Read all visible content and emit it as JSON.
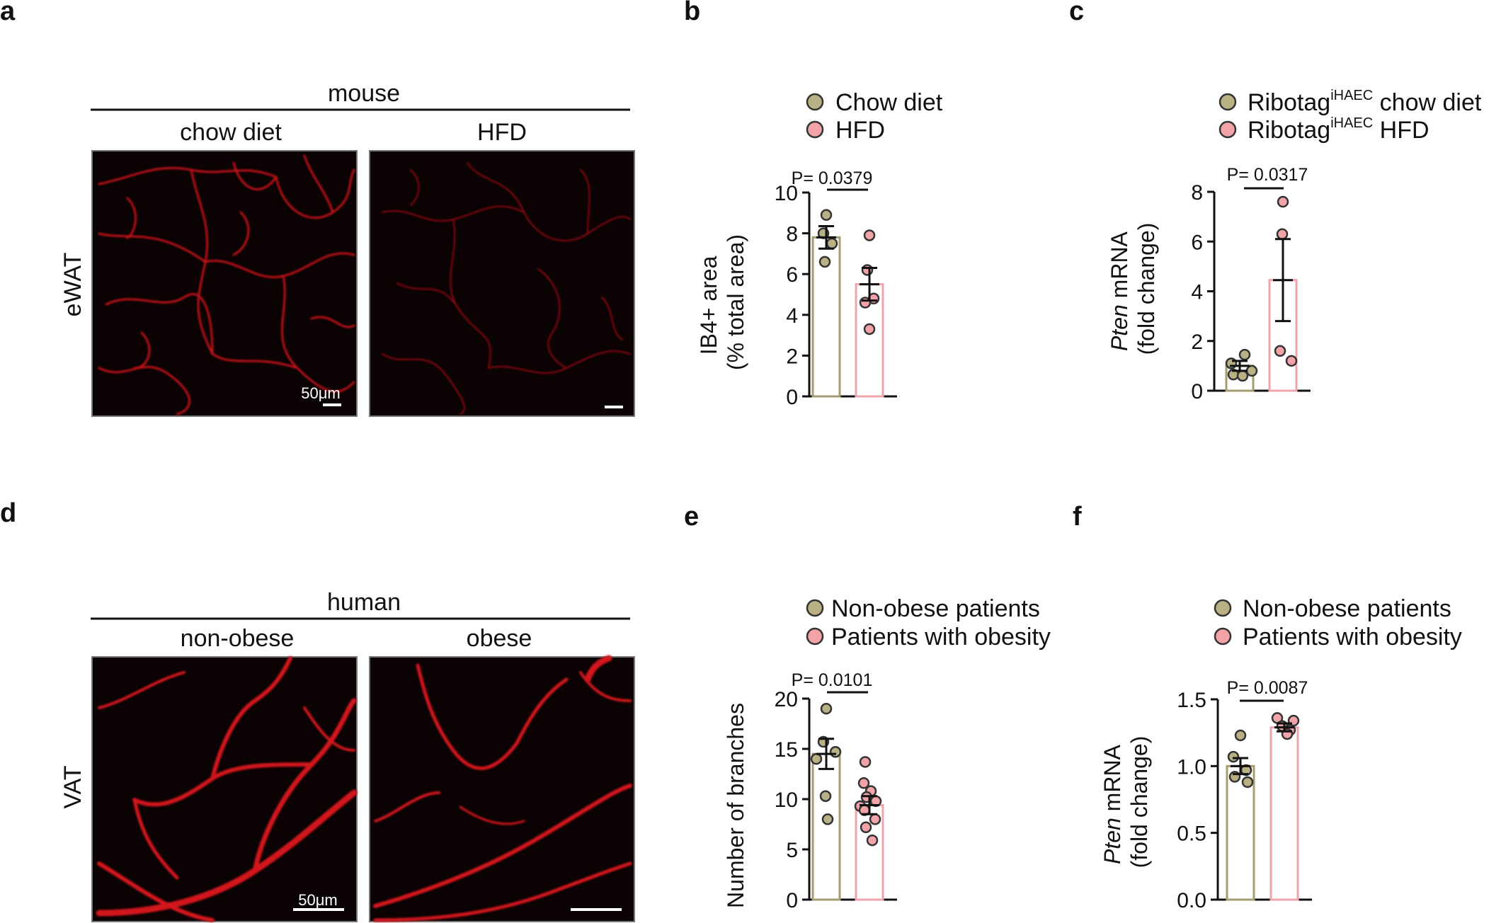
{
  "colors": {
    "chow_fill": "#b9b183",
    "chow_bar": "#a59d70",
    "hfd_fill": "#f2a3a8",
    "hfd_bar": "#f1a3ab",
    "vessel": "#d1121a",
    "image_bg": "#0b0203"
  },
  "panel_a": {
    "letter": "a",
    "species": "mouse",
    "col1": "chow diet",
    "col2": "HFD",
    "row": "eWAT",
    "scale_bar": "50μm"
  },
  "panel_d": {
    "letter": "d",
    "species": "human",
    "col1": "non-obese",
    "col2": "obese",
    "row": "VAT",
    "scale_bar": "50μm"
  },
  "charts": {
    "b": {
      "letter": "b",
      "legend": [
        "Chow diet",
        "HFD"
      ],
      "ylabel_line1": "IB4+ area",
      "ylabel_line2": "(% total area)",
      "pvalue": "P= 0.0379"
    },
    "c": {
      "letter": "c",
      "legend1": {
        "base": "Ribotag",
        "sup": "iHAEC",
        "rest": " chow diet"
      },
      "legend2": {
        "base": "Ribotag",
        "sup": "iHAEC",
        "rest": " HFD"
      },
      "ylabel_italic": "Pten",
      "ylabel_rest": " mRNA",
      "ylabel_line2": "(fold change)",
      "pvalue": "P= 0.0317"
    },
    "e": {
      "letter": "e",
      "legend": [
        "Non-obese patients",
        "Patients with obesity"
      ],
      "ylabel_line1": "Number of branches",
      "pvalue": "P= 0.0101"
    },
    "f": {
      "letter": "f",
      "legend": [
        "Non-obese patients",
        "Patients with obesity"
      ],
      "ylabel_italic": "Pten",
      "ylabel_rest": " mRNA",
      "ylabel_line2": "(fold change)",
      "pvalue": "P= 0.0087"
    }
  },
  "chart_data": [
    {
      "panel": "b",
      "type": "bar",
      "categories": [
        "Chow diet",
        "HFD"
      ],
      "ylabel": "IB4+ area (% total area)",
      "ylim": [
        0,
        10
      ],
      "yticks": [
        "0",
        "2",
        "4",
        "6",
        "8",
        "10"
      ],
      "ytick_values": [
        0,
        2,
        4,
        6,
        8,
        10
      ],
      "series": [
        {
          "name": "Chow diet",
          "mean": 7.8,
          "sem": 0.55,
          "points": [
            8.9,
            8.0,
            7.5,
            6.6
          ]
        },
        {
          "name": "HFD",
          "mean": 5.5,
          "sem": 0.8,
          "points": [
            7.9,
            6.2,
            4.8,
            4.6,
            3.3
          ]
        }
      ],
      "pvalue": "P= 0.0379"
    },
    {
      "panel": "c",
      "type": "bar",
      "categories": [
        "Ribotag iHAEC chow diet",
        "Ribotag iHAEC HFD"
      ],
      "ylabel": "Pten mRNA (fold change)",
      "ylim": [
        0,
        8
      ],
      "yticks": [
        "0",
        "2",
        "4",
        "6",
        "8"
      ],
      "ytick_values": [
        0,
        2,
        4,
        6,
        8
      ],
      "series": [
        {
          "name": "Ribotag iHAEC chow diet",
          "mean": 1.0,
          "sem": 0.2,
          "points": [
            1.45,
            1.1,
            0.8,
            0.65,
            0.6
          ]
        },
        {
          "name": "Ribotag iHAEC HFD",
          "mean": 4.45,
          "sem": 1.65,
          "points": [
            7.6,
            6.3,
            1.6,
            1.2
          ]
        }
      ],
      "pvalue": "P= 0.0317"
    },
    {
      "panel": "e",
      "type": "bar",
      "categories": [
        "Non-obese patients",
        "Patients with obesity"
      ],
      "ylabel": "Number of branches",
      "ylim": [
        0,
        20
      ],
      "yticks": [
        "0",
        "5",
        "10",
        "15",
        "20"
      ],
      "ytick_values": [
        0,
        5,
        10,
        15,
        20
      ],
      "series": [
        {
          "name": "Non-obese patients",
          "mean": 14.5,
          "sem": 1.5,
          "points": [
            19.0,
            15.7,
            14.7,
            14.0,
            10.3,
            8.0
          ]
        },
        {
          "name": "Patients with obesity",
          "mean": 9.4,
          "sem": 0.9,
          "points": [
            13.7,
            11.6,
            10.8,
            10.2,
            9.8,
            9.3,
            8.9,
            8.0,
            7.2,
            5.9
          ]
        }
      ],
      "pvalue": "P= 0.0101"
    },
    {
      "panel": "f",
      "type": "bar",
      "categories": [
        "Non-obese patients",
        "Patients with obesity"
      ],
      "ylabel": "Pten mRNA (fold change)",
      "ylim": [
        0,
        1.5
      ],
      "yticks": [
        "0.0",
        "0.5",
        "1.0",
        "1.5"
      ],
      "ytick_values": [
        0,
        0.5,
        1.0,
        1.5
      ],
      "series": [
        {
          "name": "Non-obese patients",
          "mean": 1.0,
          "sem": 0.06,
          "points": [
            1.23,
            1.07,
            0.97,
            0.92,
            0.88
          ]
        },
        {
          "name": "Patients with obesity",
          "mean": 1.29,
          "sem": 0.03,
          "points": [
            1.36,
            1.34,
            1.3,
            1.27,
            1.24
          ]
        }
      ],
      "pvalue": "P= 0.0087"
    }
  ]
}
